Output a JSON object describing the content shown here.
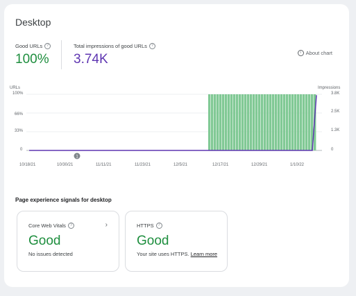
{
  "header": {
    "title": "Desktop"
  },
  "metrics": {
    "good_urls_label": "Good URLs",
    "good_urls_value": "100%",
    "impressions_label": "Total impressions of good URLs",
    "impressions_value": "3.74K"
  },
  "about_chart": "About chart",
  "chart": {
    "left_axis_title": "URLs",
    "right_axis_title": "Impressions",
    "left_ticks": [
      "100%",
      "66%",
      "33%",
      "0"
    ],
    "right_ticks": [
      "3.8K",
      "2.5K",
      "1.3K",
      "0"
    ],
    "x_ticks": [
      "10/18/21",
      "10/30/21",
      "11/11/21",
      "11/23/21",
      "12/5/21",
      "12/17/21",
      "12/29/21",
      "1/10/22"
    ],
    "annotation_marker": "1"
  },
  "chart_data": {
    "type": "bar",
    "title": "",
    "xlabel": "",
    "ylabel": "URLs",
    "y2label": "Impressions",
    "ylim": [
      0,
      100
    ],
    "y2lim": [
      0,
      3800
    ],
    "categories_range": [
      "10/18/21",
      "1/20/22"
    ],
    "series": [
      {
        "name": "URLs",
        "type": "bar",
        "color": "#81c995",
        "note_start": "12/13/21",
        "note_end": "1/20/22",
        "value": 100
      },
      {
        "name": "Impressions",
        "type": "line",
        "color": "#5e35b1",
        "start_value": 0,
        "end_value": 3740
      }
    ]
  },
  "signals": {
    "section_title": "Page experience signals for desktop",
    "core_web_vitals": {
      "label": "Core Web Vitals",
      "status": "Good",
      "description": "No issues detected"
    },
    "https": {
      "label": "HTTPS",
      "status": "Good",
      "description": "Your site uses HTTPS.",
      "link": "Learn more"
    }
  },
  "colors": {
    "good": "#1e8e3e",
    "impressions": "#5e35b1",
    "bars": "#81c995"
  }
}
